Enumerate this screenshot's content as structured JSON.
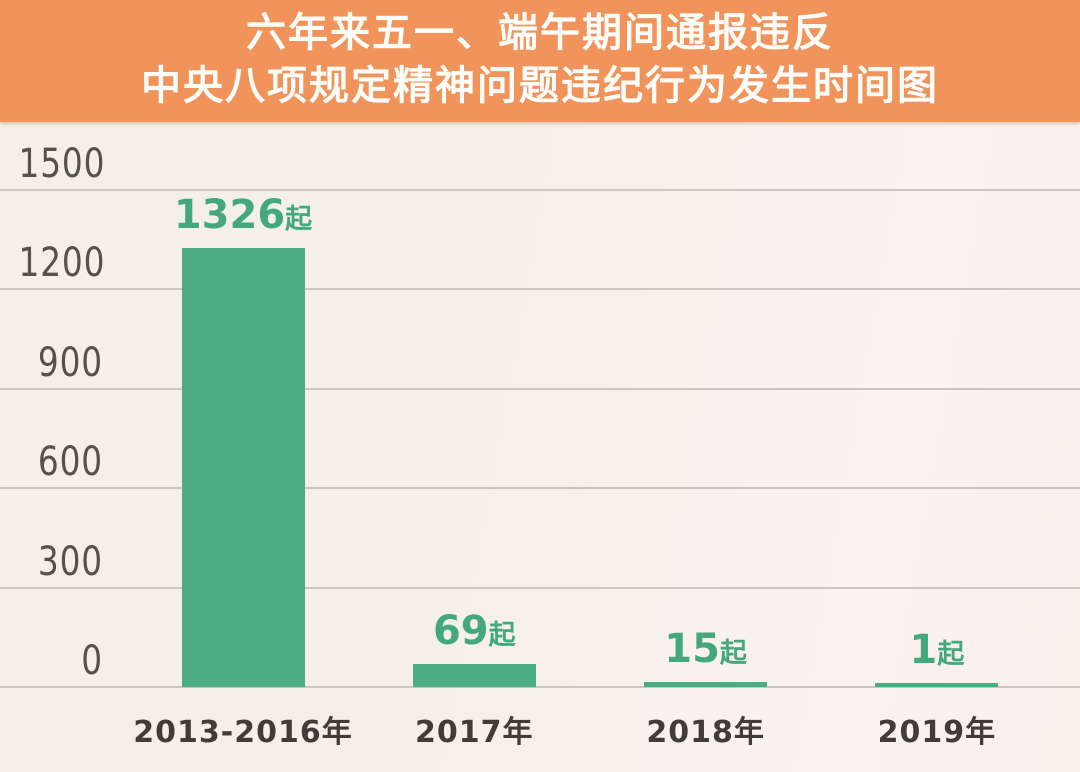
{
  "header": {
    "title_line1": "六年来五一、端午期间通报违反",
    "title_line2": "中央八项规定精神问题违纪行为发生时间图"
  },
  "chart_data": {
    "type": "bar",
    "title": "六年来五一、端午期间通报违反中央八项规定精神问题违纪行为发生时间图",
    "categories": [
      "2013-2016年",
      "2017年",
      "2018年",
      "2019年"
    ],
    "values": [
      1326,
      69,
      15,
      1
    ],
    "value_unit": "起",
    "value_labels": [
      "1326起",
      "69起",
      "15起",
      "1起"
    ],
    "yticks": [
      0,
      300,
      600,
      900,
      1200,
      1500
    ],
    "ylim": [
      0,
      1500
    ],
    "xlabel": "",
    "ylabel": "",
    "grid": "horizontal-only",
    "legend": "none"
  },
  "colors": {
    "header_bg": "#f0945c",
    "title_text": "#fdfdfa",
    "chart_bg_left": "#f5f0e7",
    "chart_bg_right": "#fcf2ee",
    "gridline": "#cbc7c0",
    "ytick_text": "#55514b",
    "xtick_text": "#413c36",
    "bar": "#4cae80",
    "value_label": "#43a97c"
  }
}
